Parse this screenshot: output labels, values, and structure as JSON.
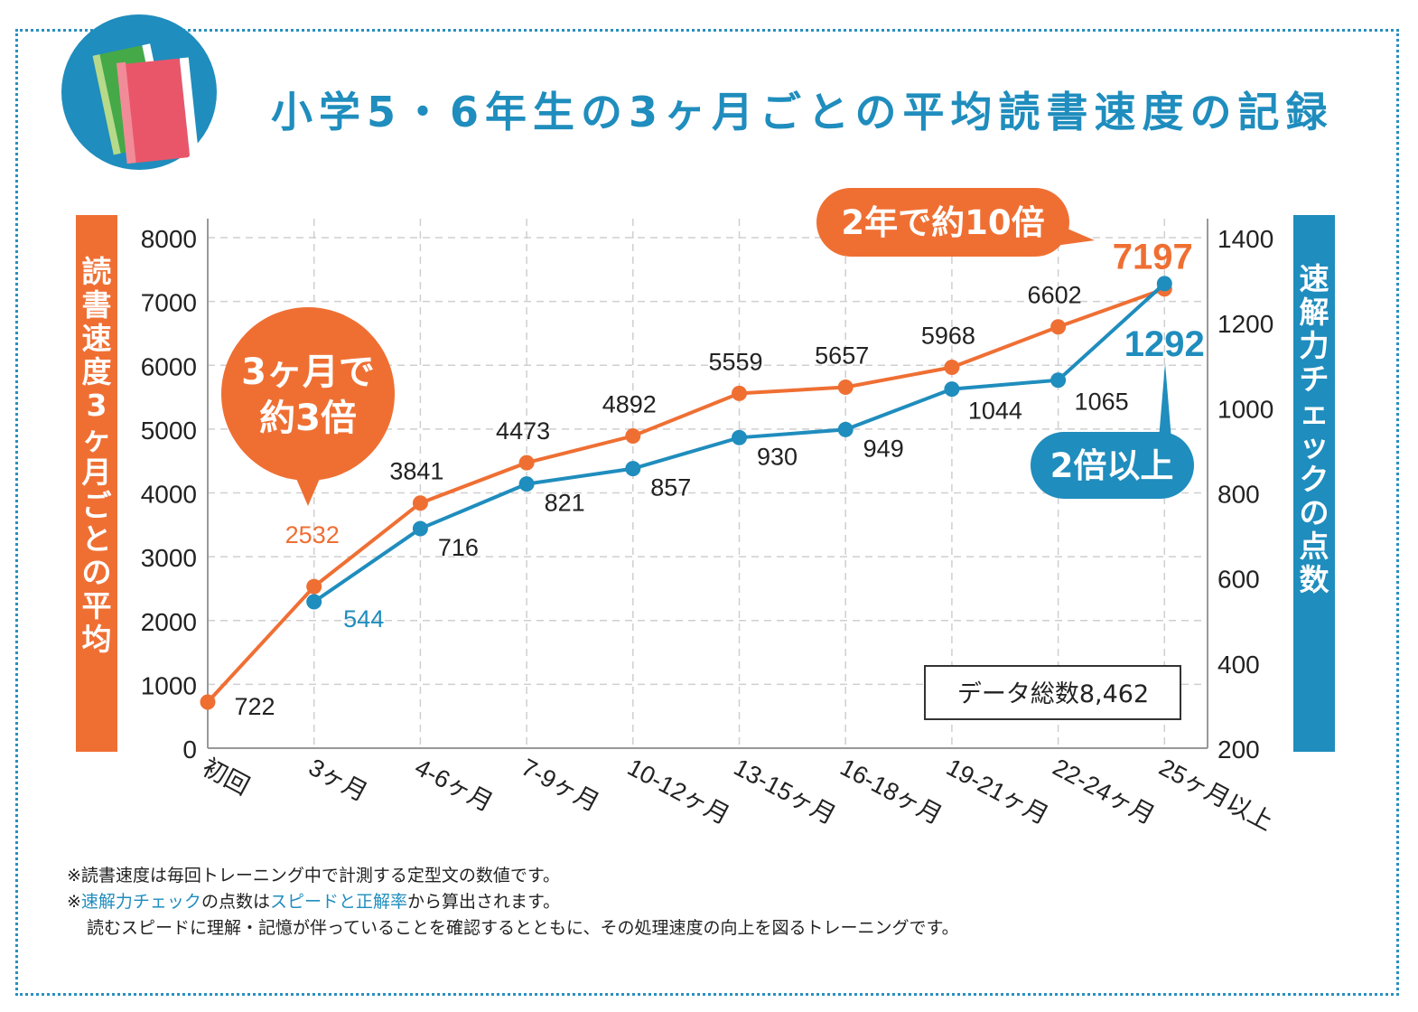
{
  "title": "小学5・6年生の3ヶ月ごとの平均読書速度の記録",
  "y_left_label": "読書速度3ヶ月ごとの平均",
  "y_right_label": "速解力チェックの点数",
  "chart_data": {
    "type": "line",
    "categories": [
      "初回",
      "3ヶ月",
      "4-6ヶ月",
      "7-9ヶ月",
      "10-12ヶ月",
      "13-15ヶ月",
      "16-18ヶ月",
      "19-21ヶ月",
      "22-24ヶ月",
      "25ヶ月以上"
    ],
    "series": [
      {
        "axis": "left",
        "color": "#ef6f33",
        "values": [
          722,
          2532,
          3841,
          4473,
          4892,
          5559,
          5657,
          5968,
          6602,
          7197
        ]
      },
      {
        "axis": "right",
        "color": "#1f8dbd",
        "values": [
          null,
          544,
          716,
          821,
          857,
          930,
          949,
          1044,
          1065,
          1292
        ]
      }
    ],
    "y_left": {
      "min": 0,
      "max": 8000,
      "ticks": [
        "0",
        "1000",
        "2000",
        "3000",
        "4000",
        "5000",
        "6000",
        "7000",
        "8000"
      ]
    },
    "y_right": {
      "min": 200,
      "max": 1400,
      "ticks": [
        "200",
        "400",
        "600",
        "800",
        "1000",
        "1200",
        "1400"
      ]
    },
    "grid": true
  },
  "callouts": {
    "three_months": [
      "3ヶ月で",
      "約3倍"
    ],
    "two_years": "2年で約10倍",
    "double": "2倍以上"
  },
  "data_total": "データ総数8,462",
  "notes": {
    "line1": "※読書速度は毎回トレーニング中で計測する定型文の数値です。",
    "line2_prefix": "※",
    "line2_blue1": "速解力チェック",
    "line2_mid": "の点数は",
    "line2_blue2": "スピードと正解率",
    "line2_suffix": "から算出されます。",
    "line3": "読むスピードに理解・記憶が伴っていることを確認するとともに、その処理速度の向上を図るトレーニングです。"
  },
  "colors": {
    "orange": "#ef6f33",
    "blue": "#1f8dbd",
    "grid": "#cfcfcf",
    "frame": "#2a8fc0"
  }
}
